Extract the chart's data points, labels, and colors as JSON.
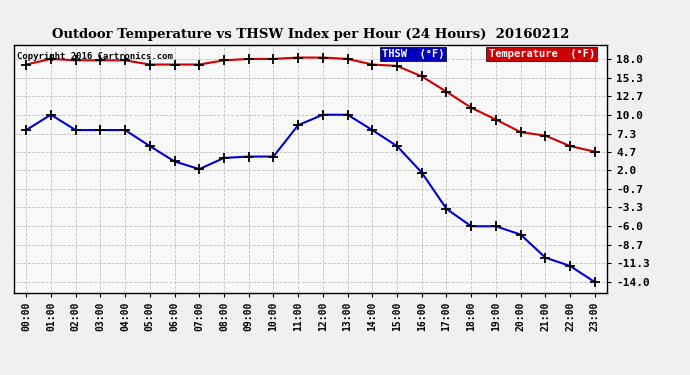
{
  "title": "Outdoor Temperature vs THSW Index per Hour (24 Hours)  20160212",
  "copyright": "Copyright 2016 Cartronics.com",
  "background_color": "#f0f0f0",
  "plot_bg_color": "#f8f8f8",
  "grid_color": "#c0c0c0",
  "hours": [
    0,
    1,
    2,
    3,
    4,
    5,
    6,
    7,
    8,
    9,
    10,
    11,
    12,
    13,
    14,
    15,
    16,
    17,
    18,
    19,
    20,
    21,
    22,
    23
  ],
  "temperature": [
    17.2,
    18.0,
    17.8,
    17.8,
    17.8,
    17.2,
    17.2,
    17.2,
    17.8,
    18.0,
    18.0,
    18.2,
    18.2,
    18.0,
    17.2,
    17.0,
    15.5,
    13.3,
    11.0,
    9.3,
    7.5,
    7.0,
    5.5,
    4.7
  ],
  "thsw": [
    7.8,
    10.0,
    7.8,
    7.8,
    7.8,
    5.5,
    3.3,
    2.2,
    3.8,
    4.0,
    4.0,
    8.5,
    10.0,
    10.0,
    7.8,
    5.5,
    1.7,
    -3.5,
    -6.0,
    -6.0,
    -7.2,
    -10.5,
    -11.7,
    -14.0
  ],
  "temp_color": "#cc0000",
  "thsw_color": "#0000cc",
  "marker_color": "#000000",
  "yticks": [
    18.0,
    15.3,
    12.7,
    10.0,
    7.3,
    4.7,
    2.0,
    -0.7,
    -3.3,
    -6.0,
    -8.7,
    -11.3,
    -14.0
  ],
  "ylim": [
    -15.5,
    20.0
  ],
  "xlim": [
    -0.5,
    23.5
  ],
  "legend_thsw_bg": "#0000bb",
  "legend_temp_bg": "#cc0000",
  "legend_text_color": "#ffffff",
  "legend_thsw_label": "THSW  (°F)",
  "legend_temp_label": "Temperature  (°F)"
}
